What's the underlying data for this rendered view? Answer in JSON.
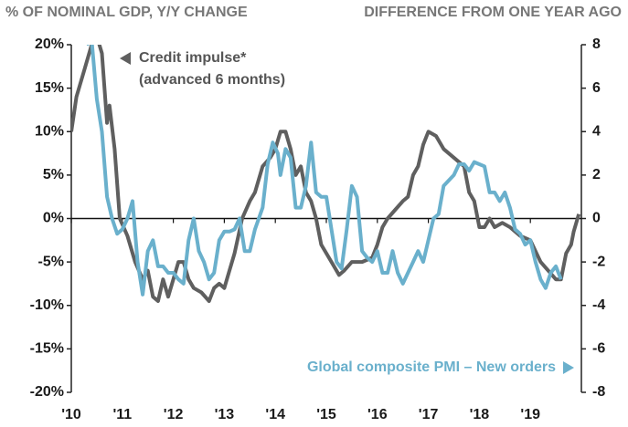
{
  "chart_data": {
    "type": "line",
    "left_axis_label": "% OF NOMINAL GDP, Y/Y CHANGE",
    "right_axis_label": "DIFFERENCE FROM ONE YEAR AGO",
    "annotations": [
      "Credit impulse*",
      "(advanced 6 months)",
      "Global composite PMI – New orders"
    ],
    "xlim": [
      2010,
      2020
    ],
    "xticks": [
      {
        "value": 2010,
        "label": "'10"
      },
      {
        "value": 2011,
        "label": "'11"
      },
      {
        "value": 2012,
        "label": "'12"
      },
      {
        "value": 2013,
        "label": "'13"
      },
      {
        "value": 2014,
        "label": "'14"
      },
      {
        "value": 2015,
        "label": "'15"
      },
      {
        "value": 2016,
        "label": "'16"
      },
      {
        "value": 2017,
        "label": "'17"
      },
      {
        "value": 2018,
        "label": "'18"
      },
      {
        "value": 2019,
        "label": "'19"
      }
    ],
    "ylim": [
      -20,
      20
    ],
    "yticks": [
      {
        "value": 20,
        "label": "20%"
      },
      {
        "value": 15,
        "label": "15%"
      },
      {
        "value": 10,
        "label": "10%"
      },
      {
        "value": 5,
        "label": "5%"
      },
      {
        "value": 0,
        "label": "0%"
      },
      {
        "value": -5,
        "label": "-5%"
      },
      {
        "value": -10,
        "label": "-10%"
      },
      {
        "value": -15,
        "label": "-15%"
      },
      {
        "value": -20,
        "label": "-20%"
      }
    ],
    "y2lim": [
      -8,
      8
    ],
    "y2ticks": [
      8,
      6,
      4,
      2,
      0,
      -2,
      -4,
      -6,
      -8
    ],
    "series": [
      {
        "name": "Credit impulse*",
        "color": "#5f5f5f",
        "x": [
          2010.0,
          2010.1,
          2010.25,
          2010.4,
          2010.5,
          2010.6,
          2010.7,
          2010.75,
          2010.85,
          2010.95,
          2011.1,
          2011.25,
          2011.4,
          2011.5,
          2011.6,
          2011.7,
          2011.8,
          2011.9,
          2012.0,
          2012.1,
          2012.2,
          2012.3,
          2012.4,
          2012.55,
          2012.7,
          2012.8,
          2012.9,
          2013.0,
          2013.1,
          2013.2,
          2013.35,
          2013.5,
          2013.6,
          2013.75,
          2013.9,
          2014.0,
          2014.1,
          2014.2,
          2014.3,
          2014.4,
          2014.5,
          2014.6,
          2014.7,
          2014.8,
          2014.9,
          2015.0,
          2015.1,
          2015.25,
          2015.35,
          2015.5,
          2015.7,
          2015.9,
          2016.0,
          2016.1,
          2016.2,
          2016.35,
          2016.5,
          2016.6,
          2016.7,
          2016.8,
          2016.9,
          2017.0,
          2017.15,
          2017.3,
          2017.5,
          2017.7,
          2017.8,
          2017.9,
          2018.0,
          2018.1,
          2018.2,
          2018.3,
          2018.45,
          2018.6,
          2018.8,
          2019.0,
          2019.2,
          2019.35,
          2019.5,
          2019.6,
          2019.7,
          2019.8,
          2019.85,
          2019.95
        ],
        "values": [
          10,
          14,
          17,
          20,
          21,
          19,
          11,
          13,
          8,
          0,
          -2,
          -5,
          -7,
          -6,
          -9,
          -9.5,
          -7,
          -9,
          -7,
          -5,
          -5,
          -7,
          -8,
          -8.5,
          -9.5,
          -8,
          -7.5,
          -8,
          -6,
          -4,
          0,
          2,
          3,
          6,
          7,
          8,
          10,
          10,
          8,
          5,
          6,
          3,
          2,
          0,
          -3,
          -4,
          -5,
          -6.5,
          -6,
          -5,
          -5,
          -4.5,
          -3,
          -1,
          0,
          1,
          2,
          2.5,
          5,
          6,
          8.5,
          10,
          9.5,
          8,
          7,
          6,
          3,
          2,
          -1,
          -1,
          0,
          -1,
          -0.5,
          -1,
          -2,
          -2.5,
          -5,
          -6,
          -7,
          -7,
          -4,
          -3,
          -1.5,
          0.5
        ]
      },
      {
        "name": "Global composite PMI – New orders",
        "color": "#6ab0cc",
        "axis": "y2",
        "x": [
          2010.3,
          2010.4,
          2010.5,
          2010.6,
          2010.7,
          2010.8,
          2010.9,
          2011.0,
          2011.1,
          2011.2,
          2011.3,
          2011.4,
          2011.5,
          2011.6,
          2011.7,
          2011.8,
          2011.9,
          2012.0,
          2012.1,
          2012.2,
          2012.3,
          2012.4,
          2012.5,
          2012.6,
          2012.7,
          2012.8,
          2012.9,
          2013.0,
          2013.1,
          2013.2,
          2013.3,
          2013.4,
          2013.5,
          2013.6,
          2013.75,
          2013.85,
          2013.95,
          2014.05,
          2014.1,
          2014.2,
          2014.3,
          2014.4,
          2014.5,
          2014.6,
          2014.7,
          2014.8,
          2014.9,
          2015.0,
          2015.1,
          2015.2,
          2015.3,
          2015.4,
          2015.5,
          2015.6,
          2015.7,
          2015.8,
          2015.9,
          2016.0,
          2016.1,
          2016.2,
          2016.3,
          2016.4,
          2016.5,
          2016.6,
          2016.7,
          2016.8,
          2016.9,
          2017.0,
          2017.1,
          2017.2,
          2017.3,
          2017.5,
          2017.6,
          2017.7,
          2017.8,
          2017.9,
          2018.0,
          2018.1,
          2018.2,
          2018.3,
          2018.4,
          2018.5,
          2018.6,
          2018.7,
          2018.8,
          2018.9,
          2019.0,
          2019.1,
          2019.2,
          2019.3,
          2019.4,
          2019.5,
          2019.6
        ],
        "values": [
          8,
          8.2,
          5.5,
          4,
          1,
          0,
          -0.7,
          -0.5,
          0,
          0.8,
          -2,
          -3.5,
          -1.5,
          -1,
          -2.2,
          -2.2,
          -2.5,
          -2.5,
          -2.8,
          -3,
          -1,
          0,
          -1.5,
          -2,
          -2.8,
          -2.5,
          -1,
          -0.6,
          -0.6,
          -0.5,
          0,
          -1.5,
          -1.5,
          -0.5,
          0.5,
          2.5,
          3.5,
          3,
          2,
          3.2,
          2.8,
          0.5,
          0.5,
          1.5,
          3.5,
          1.2,
          1,
          1,
          -0.5,
          -2,
          -2.3,
          -0.5,
          1.5,
          1,
          -1.5,
          -1.8,
          -2,
          -1.5,
          -2.5,
          -2.5,
          -1.5,
          -2.5,
          -3,
          -2.5,
          -2,
          -1.5,
          -2,
          -1,
          0,
          0.2,
          1.5,
          2,
          2.5,
          2.5,
          2.2,
          2.6,
          2.5,
          2.4,
          1.2,
          1.2,
          0.8,
          1.2,
          0.5,
          -0.5,
          -0.7,
          -1.2,
          -1,
          -2,
          -2.8,
          -3.2,
          -2.5,
          -2.2,
          -2.8
        ]
      }
    ]
  }
}
